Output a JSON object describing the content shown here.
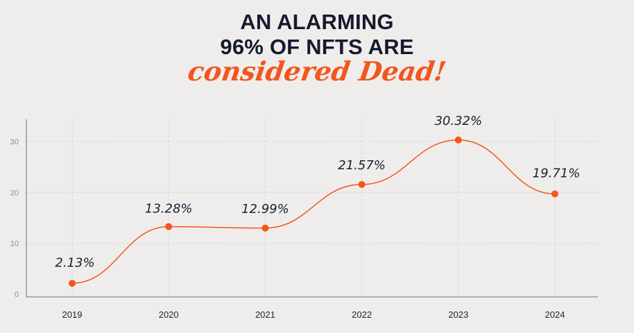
{
  "header": {
    "line1": "AN ALARMING",
    "line2": "96% OF NFTS ARE",
    "accent": "considered Dead!"
  },
  "colors": {
    "background": "#efedeb",
    "title": "#151a2d",
    "accent": "#f2561d",
    "line": "#f2561d",
    "grid": "#d6d3cf",
    "axis": "#6e6e6e"
  },
  "chart_data": {
    "type": "line",
    "title": "AN ALARMING 96% OF NFTS ARE considered Dead!",
    "xlabel": "",
    "ylabel": "",
    "categories": [
      "2019",
      "2020",
      "2021",
      "2022",
      "2023",
      "2024"
    ],
    "series": [
      {
        "values": [
          2.13,
          13.28,
          12.99,
          21.57,
          30.32,
          19.71
        ],
        "labels": [
          "2.13%",
          "13.28%",
          "12.99%",
          "21.57%",
          "30.32%",
          "19.71%"
        ]
      }
    ],
    "yticks": [
      0,
      10,
      20,
      30
    ],
    "ylim": [
      0,
      31.5
    ],
    "grid": true,
    "legend": "none",
    "smooth": true
  }
}
